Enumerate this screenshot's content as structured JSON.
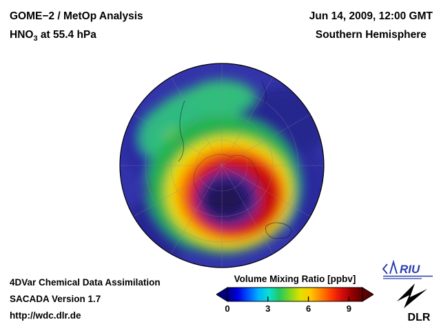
{
  "header": {
    "analysis_title": "GOME−2 / MetOp Analysis",
    "species_prefix": "HNO",
    "species_sub": "3",
    "species_suffix": " at 55.4 hPa",
    "datetime": "Jun 14, 2009, 12:00 GMT",
    "hemisphere": "Southern Hemisphere"
  },
  "footer": {
    "assimilation": "4DVar Chemical Data Assimilation",
    "version": "SACADA Version 1.7",
    "url": "http://wdc.dlr.de"
  },
  "colorbar": {
    "title": "Volume Mixing Ratio [ppbv]"
  },
  "logos": {
    "riu_label": "RIU",
    "dlr_label": "DLR"
  },
  "chart_data": {
    "type": "heatmap",
    "title": "GOME−2 / MetOp Analysis — HNO3 at 55.4 hPa",
    "datetime": "Jun 14, 2009, 12:00 GMT",
    "region": "Southern Hemisphere",
    "projection": "south polar orthographic globe with graticule and coastlines",
    "variable": "HNO3 volume mixing ratio",
    "units": "ppbv",
    "colorbar_label": "Volume Mixing Ratio [ppbv]",
    "colorbar_ticks": [
      0,
      3,
      6,
      9
    ],
    "colorbar_range": [
      0,
      10
    ],
    "colorscale": [
      "#000080",
      "#0000e0",
      "#0055ff",
      "#00b4ff",
      "#0ae0d0",
      "#22c860",
      "#7fd722",
      "#e0e000",
      "#ffc800",
      "#ff8400",
      "#ff3c00",
      "#d80c0c",
      "#960000",
      "#5c0000"
    ],
    "features": [
      {
        "region": "polar vortex core near the pole, offset toward lower-center of globe",
        "value_ppbv": "0–1",
        "color": "dark blue / purple"
      },
      {
        "region": "vortex-edge ring surrounding the core",
        "value_ppbv": "7–10",
        "color": "red / dark red"
      },
      {
        "region": "annulus just outside the red ring",
        "value_ppbv": "5–7",
        "color": "yellow / orange"
      },
      {
        "region": "broad band and arc sweeping to upper-left of globe",
        "value_ppbv": "3–4",
        "color": "green / cyan"
      },
      {
        "region": "outer low latitudes near globe rim",
        "value_ppbv": "1–2",
        "color": "blue / indigo"
      }
    ]
  }
}
